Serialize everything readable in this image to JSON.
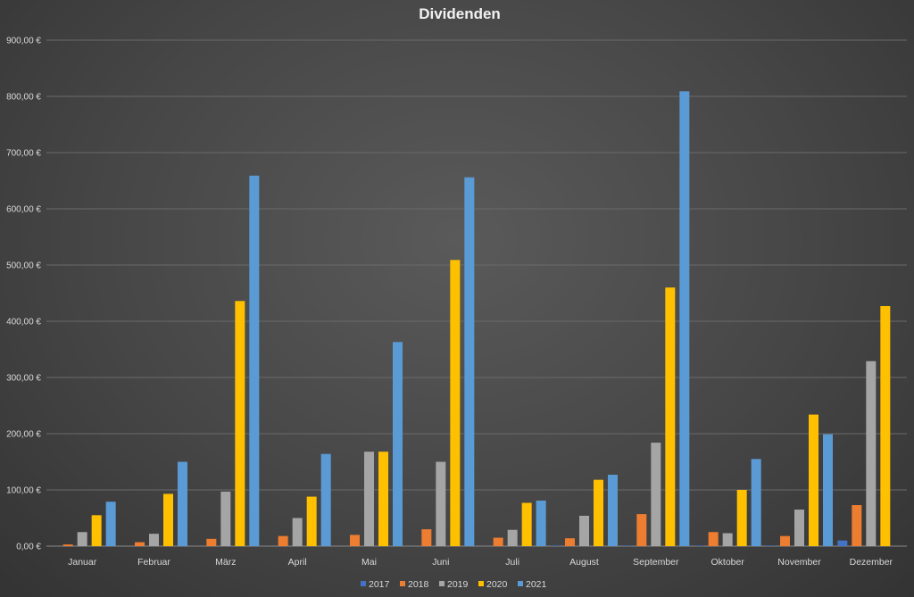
{
  "chart_data": {
    "type": "bar",
    "title": "Dividenden",
    "xlabel": "",
    "ylabel": "",
    "ylim": [
      0,
      900
    ],
    "yticks": [
      "0,00 €",
      "100,00 €",
      "200,00 €",
      "300,00 €",
      "400,00 €",
      "500,00 €",
      "600,00 €",
      "700,00 €",
      "800,00 €",
      "900,00 €"
    ],
    "grid": true,
    "legend": "bottom",
    "categories": [
      "Januar",
      "Februar",
      "März",
      "April",
      "Mai",
      "Juni",
      "Juli",
      "August",
      "September",
      "Oktober",
      "November",
      "Dezember"
    ],
    "series": [
      {
        "name": "2017",
        "color": "#4472c4",
        "values": [
          0,
          0,
          0,
          0,
          0,
          0,
          0,
          1,
          1,
          1,
          1,
          10
        ]
      },
      {
        "name": "2018",
        "color": "#ed7d31",
        "values": [
          3,
          7,
          13,
          18,
          20,
          30,
          15,
          14,
          57,
          25,
          18,
          73
        ]
      },
      {
        "name": "2019",
        "color": "#a5a5a5",
        "values": [
          25,
          22,
          97,
          50,
          168,
          150,
          29,
          54,
          184,
          23,
          65,
          329
        ]
      },
      {
        "name": "2020",
        "color": "#ffc000",
        "values": [
          55,
          93,
          436,
          88,
          168,
          509,
          77,
          118,
          460,
          100,
          234,
          427
        ]
      },
      {
        "name": "2021",
        "color": "#5b9bd5",
        "values": [
          79,
          150,
          659,
          164,
          363,
          656,
          81,
          127,
          809,
          155,
          199,
          0
        ]
      }
    ]
  }
}
